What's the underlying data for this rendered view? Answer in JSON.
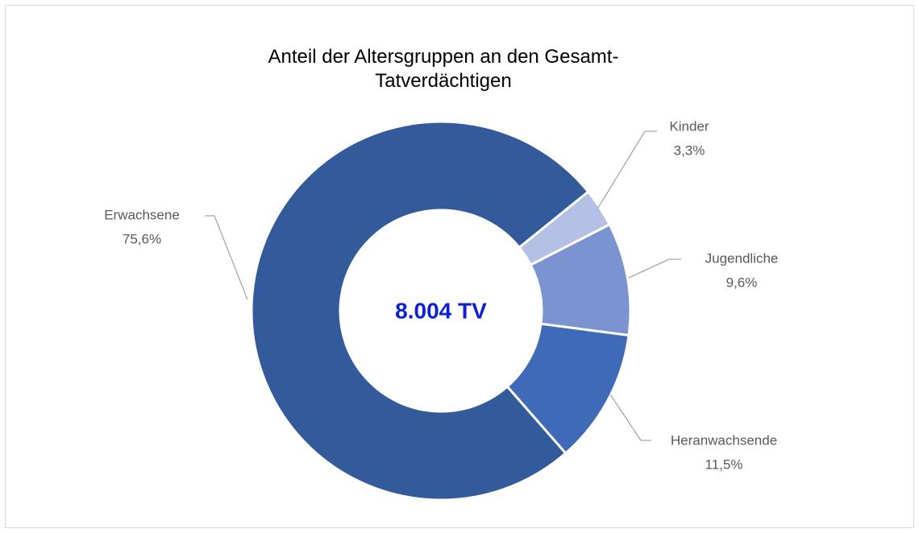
{
  "chart_data": {
    "type": "donut",
    "title": "Anteil der Altersgruppen an den Gesamt-Tatverdächtigen",
    "center_label": "8.004 TV",
    "categories": [
      "Kinder",
      "Jugendliche",
      "Heranwachsende",
      "Erwachsene"
    ],
    "values": [
      3.3,
      9.6,
      11.5,
      75.6
    ],
    "value_labels": [
      "3,3%",
      "9,6%",
      "11,5%",
      "75,6%"
    ],
    "colors": [
      "#b4c1e4",
      "#7b93d1",
      "#3e6ab8",
      "#335a9b"
    ]
  }
}
